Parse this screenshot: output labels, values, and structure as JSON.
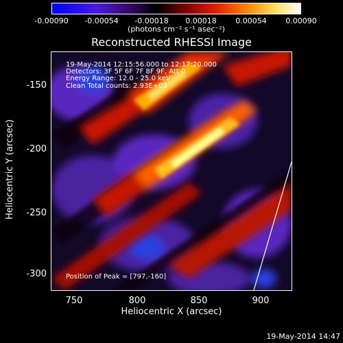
{
  "colorbar": {
    "ticks": [
      "-0.00090",
      "-0.00054",
      "-0.00018",
      "0.00018",
      "0.00054",
      "0.00090"
    ],
    "unit_label": "(photons cm⁻² s⁻¹ asec⁻²)",
    "colors": [
      "#0000ff",
      "#5a1ad0",
      "#000000",
      "#c80000",
      "#ff7a00",
      "#ffff80",
      "#ffffff"
    ]
  },
  "title": "Reconstructed RHESSI Image",
  "annotations": {
    "time_range": "19-May-2014 12:15:56.000 to 12:17:20.000",
    "detectors": "Detectors: 3F 5F 6F 7F 8F 9F, Att 0",
    "energy_range": "Energy Range: 12.0 - 25.0 keV",
    "clean_counts": "Clean    Total counts: 2.93E+03",
    "peak_position": "Position of Peak = [797,-160]"
  },
  "axes": {
    "xlabel": "Heliocentric X (arcsec)",
    "ylabel": "Heliocentric Y (arcsec)",
    "xticks": [
      "750",
      "800",
      "850",
      "900"
    ],
    "yticks": [
      "-150",
      "-200",
      "-250",
      "-300"
    ]
  },
  "datestamp": "19-May-2014 14:47"
}
